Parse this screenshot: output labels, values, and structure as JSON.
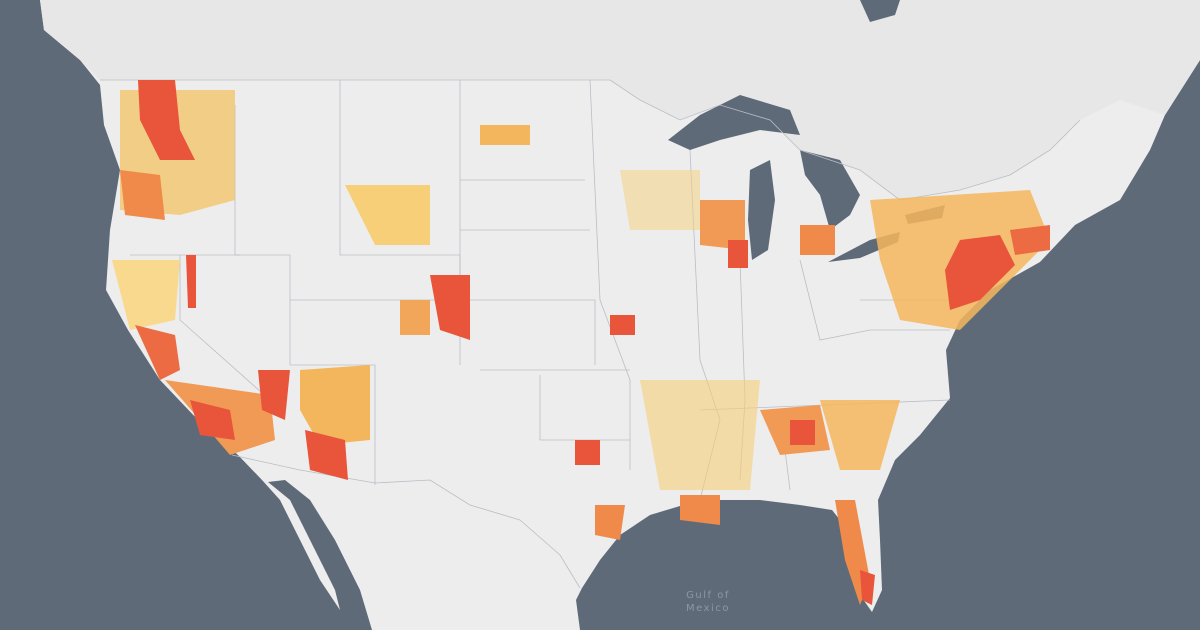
{
  "labels": {
    "water": [
      "Gulf of",
      "Mexico"
    ]
  }
}
